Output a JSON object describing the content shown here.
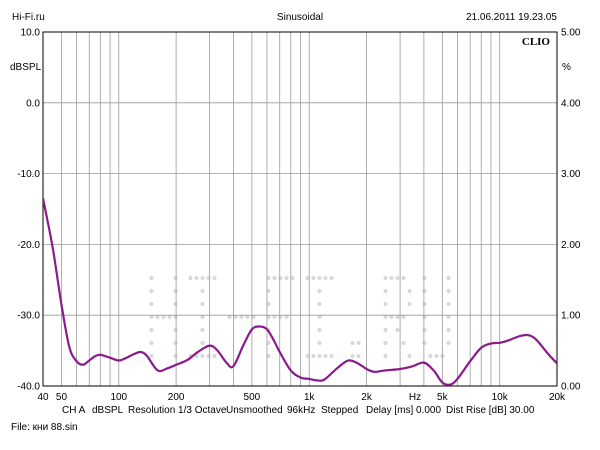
{
  "header": {
    "site": "Hi-Fi.ru",
    "mode": "Sinusoidal",
    "datetime": "21.06.2011 19.23.05"
  },
  "brand": "CLIO",
  "watermark": "HI-FI.RU",
  "status_bar": {
    "channel": "CH A",
    "unit": "dBSPL",
    "resolution": "Resolution 1/3 Octave",
    "smoothing": "Unsmoothed",
    "rate": "96kHz",
    "stepping": "Stepped",
    "delay": "Delay [ms] 0.000",
    "dist_rise": "Dist Rise [dB] 30.00"
  },
  "file_label": "File: кни 88.sin",
  "chart_data": {
    "type": "line",
    "x_scale": "log",
    "xlim": [
      40,
      20000
    ],
    "ylim": [
      -40,
      10
    ],
    "ylim_right": [
      0,
      5
    ],
    "ylabel": "dBSPL",
    "ylabel_right": "%",
    "xlabel": "Hz",
    "grid": true,
    "x_ticks": [
      {
        "v": 40,
        "label": "40"
      },
      {
        "v": 50,
        "label": "50"
      },
      {
        "v": 100,
        "label": "100"
      },
      {
        "v": 200,
        "label": "200"
      },
      {
        "v": 500,
        "label": "500"
      },
      {
        "v": 1000,
        "label": "1k"
      },
      {
        "v": 2000,
        "label": "2k"
      },
      {
        "v": 5000,
        "label": "5k"
      },
      {
        "v": 10000,
        "label": "10k"
      },
      {
        "v": 20000,
        "label": "20k"
      }
    ],
    "y_ticks_left": [
      "10.0",
      "0.0",
      "-10.0",
      "-20.0",
      "-30.0",
      "-40.0"
    ],
    "y_ticks_right": [
      "5.00",
      "4.00",
      "3.00",
      "2.00",
      "1.00",
      "0.00"
    ],
    "series": [
      {
        "color": "#8b1a8b",
        "x": [
          40,
          45,
          50,
          55,
          60,
          65,
          70,
          75,
          80,
          90,
          100,
          110,
          120,
          130,
          140,
          160,
          180,
          200,
          230,
          260,
          300,
          330,
          370,
          400,
          450,
          500,
          550,
          600,
          650,
          700,
          800,
          900,
          1000,
          1100,
          1200,
          1400,
          1600,
          1800,
          2000,
          2200,
          2500,
          3000,
          3500,
          4000,
          4500,
          5000,
          5500,
          6000,
          7000,
          8000,
          9000,
          10000,
          11000,
          12000,
          13000,
          14000,
          15000,
          16000,
          18000,
          20000
        ],
        "y": [
          -13.5,
          -20.5,
          -28.5,
          -34.5,
          -36.5,
          -37.0,
          -36.4,
          -35.8,
          -35.6,
          -36.0,
          -36.4,
          -36.0,
          -35.5,
          -35.2,
          -35.7,
          -37.8,
          -37.5,
          -37.0,
          -36.3,
          -35.2,
          -34.3,
          -35.0,
          -36.8,
          -37.2,
          -34.3,
          -32.0,
          -31.6,
          -32.0,
          -33.5,
          -35.2,
          -37.8,
          -38.8,
          -39.0,
          -39.2,
          -39.1,
          -37.5,
          -36.4,
          -36.8,
          -37.6,
          -38.0,
          -37.8,
          -37.6,
          -37.2,
          -36.7,
          -37.8,
          -39.5,
          -39.8,
          -39.0,
          -36.5,
          -34.6,
          -34.0,
          -33.9,
          -33.6,
          -33.2,
          -32.9,
          -32.8,
          -33.1,
          -33.8,
          -35.5,
          -36.8
        ]
      }
    ]
  }
}
